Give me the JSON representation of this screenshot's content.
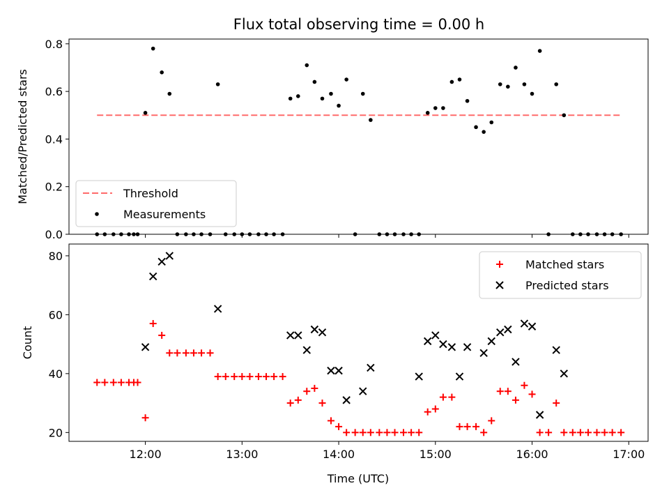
{
  "chart_data": {
    "title": "Flux total observing time = 0.00 h",
    "xlabel": "Time (UTC)",
    "x_tick_labels": [
      "12:00",
      "13:00",
      "14:00",
      "15:00",
      "16:00",
      "17:00"
    ],
    "x_range_hours": [
      11.21,
      17.2
    ],
    "panels": [
      {
        "id": "ratio",
        "type": "scatter",
        "ylabel": "Matched/Predicted stars",
        "ylim": [
          0,
          0.82
        ],
        "yticks": [
          0.0,
          0.2,
          0.4,
          0.6,
          0.8
        ],
        "x_tick_labels_visible": false,
        "legend": {
          "position": "lower-left",
          "entries": [
            "Threshold",
            "Measurements"
          ]
        },
        "series": [
          {
            "name": "Threshold",
            "type": "line",
            "style": "dashed",
            "color": "#ff6a6a",
            "x": [
              11.5,
              16.92
            ],
            "y": [
              0.5,
              0.5
            ]
          },
          {
            "name": "Measurements",
            "type": "scatter",
            "marker": "dot",
            "color": "#000000",
            "x": [
              11.5,
              11.58,
              11.67,
              11.75,
              11.83,
              11.88,
              11.92,
              12.0,
              12.08,
              12.17,
              12.25,
              12.33,
              12.42,
              12.5,
              12.58,
              12.67,
              12.75,
              12.83,
              12.92,
              13.0,
              13.08,
              13.17,
              13.25,
              13.33,
              13.42,
              13.5,
              13.58,
              13.67,
              13.75,
              13.83,
              13.92,
              14.0,
              14.08,
              14.17,
              14.25,
              14.33,
              14.42,
              14.5,
              14.58,
              14.67,
              14.75,
              14.83,
              14.92,
              15.0,
              15.08,
              15.17,
              15.25,
              15.33,
              15.42,
              15.5,
              15.58,
              15.67,
              15.75,
              15.83,
              15.92,
              16.0,
              16.08,
              16.17,
              16.25,
              16.33,
              16.42,
              16.5,
              16.58,
              16.67,
              16.75,
              16.83,
              16.92
            ],
            "y": [
              0,
              0,
              0,
              0,
              0,
              0,
              0,
              0.51,
              0.78,
              0.68,
              0.59,
              0,
              0,
              0,
              0,
              0,
              0.63,
              0,
              0,
              0,
              0,
              0,
              0,
              0,
              0,
              0.57,
              0.58,
              0.71,
              0.64,
              0.57,
              0.59,
              0.54,
              0.65,
              0,
              0.59,
              0.48,
              0,
              0,
              0,
              0,
              0,
              0,
              0.51,
              0.53,
              0.53,
              0.64,
              0.65,
              0.56,
              0.45,
              0.43,
              0.47,
              0.63,
              0.62,
              0.7,
              0.63,
              0.59,
              0.77,
              0,
              0.63,
              0.5,
              0,
              0,
              0,
              0,
              0,
              0,
              0
            ]
          }
        ]
      },
      {
        "id": "counts",
        "type": "scatter",
        "ylabel": "Count",
        "ylim": [
          17,
          84
        ],
        "yticks": [
          20,
          40,
          60,
          80
        ],
        "legend": {
          "position": "upper-right",
          "entries": [
            "Matched stars",
            "Predicted stars"
          ]
        },
        "series": [
          {
            "name": "Matched stars",
            "marker": "plus",
            "color": "#ff0000",
            "x": [
              11.5,
              11.58,
              11.67,
              11.75,
              11.83,
              11.88,
              11.92,
              12.0,
              12.08,
              12.17,
              12.25,
              12.33,
              12.42,
              12.5,
              12.58,
              12.67,
              12.75,
              12.83,
              12.92,
              13.0,
              13.08,
              13.17,
              13.25,
              13.33,
              13.42,
              13.5,
              13.58,
              13.67,
              13.75,
              13.83,
              13.92,
              14.0,
              14.08,
              14.17,
              14.25,
              14.33,
              14.42,
              14.5,
              14.58,
              14.67,
              14.75,
              14.83,
              14.92,
              15.0,
              15.08,
              15.17,
              15.25,
              15.33,
              15.42,
              15.5,
              15.58,
              15.67,
              15.75,
              15.83,
              15.92,
              16.0,
              16.08,
              16.17,
              16.25,
              16.33,
              16.42,
              16.5,
              16.58,
              16.67,
              16.75,
              16.83,
              16.92
            ],
            "y": [
              37,
              37,
              37,
              37,
              37,
              37,
              37,
              25,
              57,
              53,
              47,
              47,
              47,
              47,
              47,
              47,
              39,
              39,
              39,
              39,
              39,
              39,
              39,
              39,
              39,
              30,
              31,
              34,
              35,
              30,
              24,
              22,
              20,
              20,
              20,
              20,
              20,
              20,
              20,
              20,
              20,
              20,
              27,
              28,
              32,
              32,
              22,
              22,
              22,
              20,
              24,
              34,
              34,
              31,
              36,
              33,
              20,
              20,
              30,
              20,
              20,
              20,
              20,
              20,
              20,
              20,
              20
            ]
          },
          {
            "name": "Predicted stars",
            "marker": "x",
            "color": "#000000",
            "x": [
              12.0,
              12.08,
              12.17,
              12.25,
              12.75,
              13.5,
              13.58,
              13.67,
              13.75,
              13.83,
              13.92,
              14.0,
              14.08,
              14.25,
              14.33,
              14.83,
              14.92,
              15.0,
              15.08,
              15.17,
              15.25,
              15.33,
              15.5,
              15.58,
              15.67,
              15.75,
              15.83,
              15.92,
              16.0,
              16.08,
              16.25,
              16.33
            ],
            "y": [
              49,
              73,
              78,
              80,
              62,
              53,
              53,
              48,
              55,
              54,
              41,
              41,
              31,
              34,
              42,
              39,
              51,
              53,
              50,
              49,
              39,
              49,
              47,
              51,
              54,
              55,
              44,
              57,
              56,
              26,
              48,
              40
            ]
          }
        ]
      }
    ]
  }
}
